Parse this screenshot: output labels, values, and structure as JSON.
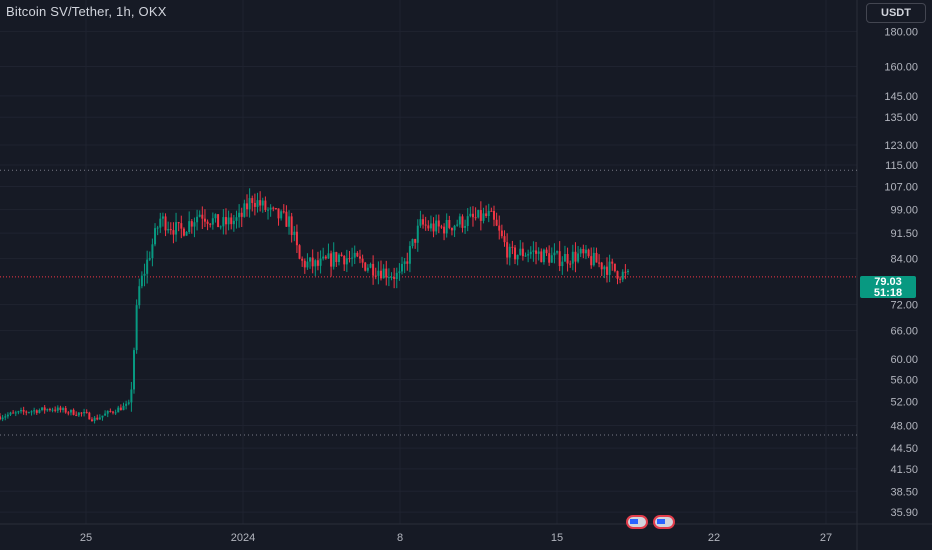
{
  "header": {
    "title": "Bitcoin SV/Tether, 1h, OKX",
    "currency_button": "USDT"
  },
  "price_tag": {
    "price": "79.03",
    "countdown": "51:18"
  },
  "colors": {
    "background": "#161a25",
    "grid": "#1f2330",
    "up": "#089981",
    "down": "#f23645",
    "axis_text": "#b2b5be",
    "dotted_level": "#787b86",
    "last_price_line": "#f23645"
  },
  "icons": {
    "event_flags": "us-flag-icon"
  },
  "chart_data": {
    "type": "candlestick",
    "title": "Bitcoin SV/Tether, 1h, OKX",
    "xlabel": "",
    "ylabel": "",
    "y_scale": "log",
    "ylim": [
      34.5,
      200
    ],
    "x_tick_labels": [
      "25",
      "2024",
      "8",
      "15",
      "22",
      "27"
    ],
    "y_tick_labels": [
      "180.00",
      "160.00",
      "145.00",
      "135.00",
      "123.00",
      "115.00",
      "107.00",
      "99.00",
      "91.50",
      "84.00",
      "72.00",
      "66.00",
      "60.00",
      "56.00",
      "52.00",
      "48.00",
      "44.50",
      "41.50",
      "38.50",
      "35.90"
    ],
    "last_price": 79.03,
    "horizontal_levels": [
      113.0,
      46.5
    ],
    "grid": true,
    "series": [
      {
        "points": [
          [
            "Dec 20",
            49.5
          ],
          [
            "Dec 21",
            50.3
          ],
          [
            "Dec 22",
            50.8
          ],
          [
            "Dec 23",
            50.2
          ],
          [
            "Dec 24",
            49.8
          ],
          [
            "Dec 25",
            49.0
          ],
          [
            "Dec 26",
            50.5
          ],
          [
            "Dec 27",
            51.5
          ],
          [
            "Dec 28 00h",
            75.0
          ],
          [
            "Dec 28 12h",
            96.0
          ],
          [
            "Dec 29",
            92.0
          ],
          [
            "Dec 30",
            98.0
          ],
          [
            "Dec 31",
            94.0
          ],
          [
            "Jan 1",
            96.0
          ],
          [
            "Jan 2",
            103.0
          ],
          [
            "Jan 3",
            98.0
          ],
          [
            "Jan 4",
            95.0
          ],
          [
            "Jan 5",
            83.0
          ],
          [
            "Jan 6",
            82.0
          ],
          [
            "Jan 7",
            85.0
          ],
          [
            "Jan 8",
            79.0
          ],
          [
            "Jan 9",
            94.0
          ],
          [
            "Jan 10",
            93.0
          ],
          [
            "Jan 11",
            95.0
          ],
          [
            "Jan 12",
            97.0
          ],
          [
            "Jan 13",
            85.0
          ],
          [
            "Jan 14",
            86.0
          ],
          [
            "Jan 15",
            84.0
          ],
          [
            "Jan 16",
            85.0
          ],
          [
            "Jan 17",
            82.0
          ],
          [
            "Jan 18",
            79.03
          ]
        ]
      }
    ]
  }
}
